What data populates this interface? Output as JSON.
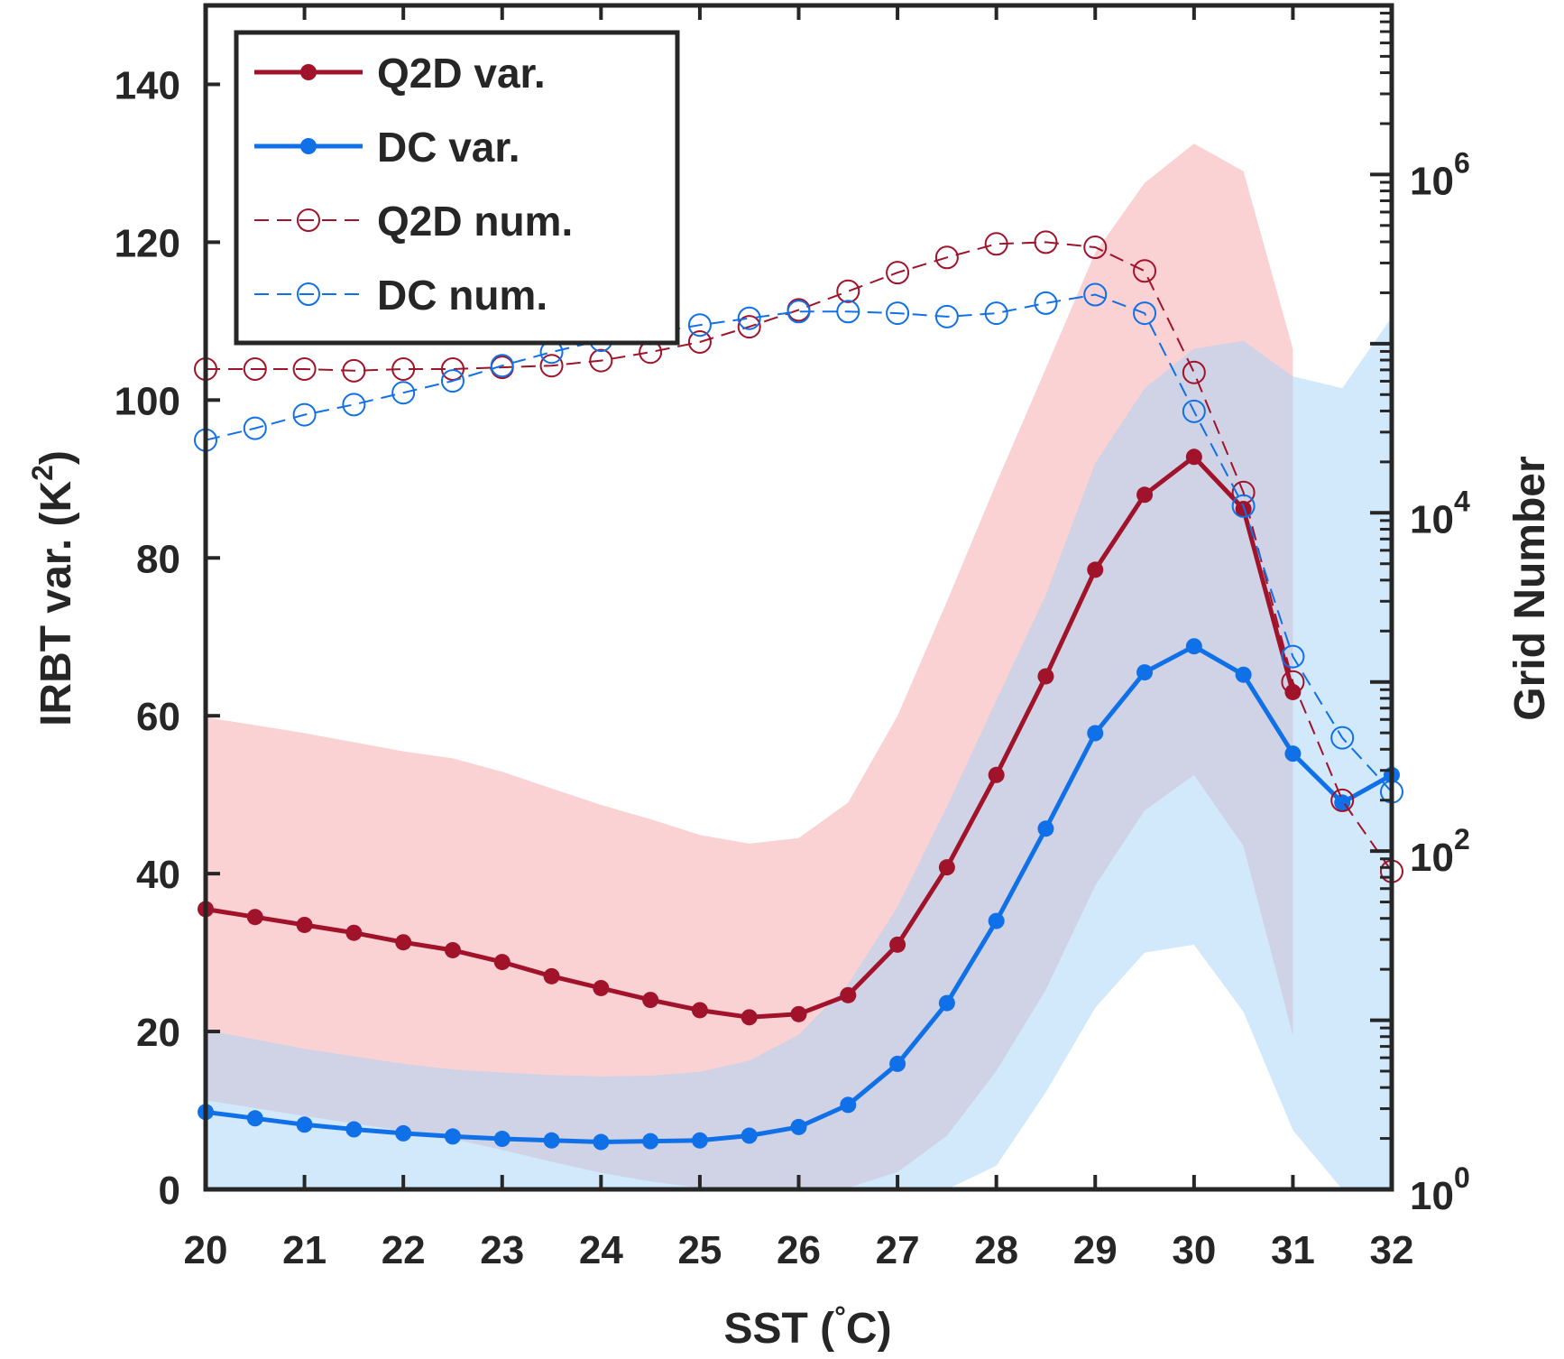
{
  "chart_data": {
    "type": "line",
    "xlabel": "SST (°C)",
    "xlabel_parts": {
      "pre": "SST (",
      "degree": "°",
      "post": "C)"
    },
    "ylabel_left": "IRBT var. (K²)",
    "ylabel_left_parts": {
      "pre": "IRBT var. (K",
      "sup": "2",
      "post": ")"
    },
    "ylabel_right": "Grid Number",
    "xlim": [
      20,
      32
    ],
    "ylim_left": [
      0,
      150
    ],
    "ylim_right_log10": [
      0,
      7
    ],
    "right_axis_scale": "log",
    "grid": false,
    "legend_position": "top-left",
    "x_ticks": [
      20,
      21,
      22,
      23,
      24,
      25,
      26,
      27,
      28,
      29,
      30,
      31,
      32
    ],
    "y_left_ticks": [
      0,
      20,
      40,
      60,
      80,
      100,
      120,
      140
    ],
    "y_right_ticks": [
      {
        "base": "10",
        "exp": "0",
        "log10": 0
      },
      {
        "base": "10",
        "exp": "2",
        "log10": 2
      },
      {
        "base": "10",
        "exp": "4",
        "log10": 4
      },
      {
        "base": "10",
        "exp": "6",
        "log10": 6
      }
    ],
    "series": [
      {
        "name": "Q2D var.",
        "axis": "left",
        "color": "#a0132a",
        "style": "solid",
        "marker": "filled",
        "x": [
          20,
          20.5,
          21,
          21.5,
          22,
          22.5,
          23,
          23.5,
          24,
          24.5,
          25,
          25.5,
          26,
          26.5,
          27,
          27.5,
          28,
          28.5,
          29,
          29.5,
          30,
          30.5,
          31
        ],
        "y": [
          35.5,
          34.5,
          33.5,
          32.5,
          31.3,
          30.3,
          28.8,
          27,
          25.5,
          24,
          22.7,
          21.8,
          22.2,
          24.6,
          31,
          40.8,
          52.5,
          65,
          78.5,
          88,
          92.8,
          86.2,
          63
        ]
      },
      {
        "name": "DC var.",
        "axis": "left",
        "color": "#1070e8",
        "style": "solid",
        "marker": "filled",
        "x": [
          20,
          20.5,
          21,
          21.5,
          22,
          22.5,
          23,
          23.5,
          24,
          24.5,
          25,
          25.5,
          26,
          26.5,
          27,
          27.5,
          28,
          28.5,
          29,
          29.5,
          30,
          30.5,
          31,
          31.5,
          32
        ],
        "y": [
          9.8,
          9,
          8.2,
          7.6,
          7.1,
          6.7,
          6.4,
          6.2,
          6,
          6.1,
          6.2,
          6.8,
          7.9,
          10.7,
          15.9,
          23.6,
          34,
          45.7,
          57.8,
          65.5,
          68.8,
          65.2,
          55.2,
          49,
          52.5
        ]
      },
      {
        "name": "Q2D num.",
        "axis": "right",
        "color": "#a0132a",
        "style": "dashed",
        "marker": "open",
        "x": [
          20,
          20.5,
          21,
          21.5,
          22,
          22.5,
          23,
          23.5,
          24,
          24.5,
          25,
          25.5,
          26,
          26.5,
          27,
          27.5,
          28,
          28.5,
          29,
          29.5,
          30,
          30.5,
          31,
          31.5,
          32
        ],
        "y_log10": [
          4.85,
          4.85,
          4.85,
          4.84,
          4.85,
          4.85,
          4.86,
          4.87,
          4.9,
          4.95,
          5.01,
          5.1,
          5.2,
          5.31,
          5.42,
          5.51,
          5.59,
          5.6,
          5.57,
          5.43,
          4.83,
          4.12,
          3.0,
          2.3,
          1.88
        ]
      },
      {
        "name": "DC num.",
        "axis": "right",
        "color": "#1070e8",
        "style": "dashed",
        "marker": "open",
        "x": [
          20,
          20.5,
          21,
          21.5,
          22,
          22.5,
          23,
          23.5,
          24,
          24.5,
          25,
          25.5,
          26,
          26.5,
          27,
          27.5,
          28,
          28.5,
          29,
          29.5,
          30,
          30.5,
          31,
          31.5,
          32
        ],
        "y_log10": [
          4.43,
          4.5,
          4.58,
          4.64,
          4.71,
          4.78,
          4.87,
          4.95,
          5.02,
          5.06,
          5.11,
          5.15,
          5.19,
          5.19,
          5.18,
          5.16,
          5.18,
          5.24,
          5.29,
          5.18,
          4.6,
          4.04,
          3.15,
          2.67,
          2.35
        ]
      }
    ],
    "bands": [
      {
        "series": "Q2D var.",
        "color": "#f9b7b8",
        "opacity": 0.62,
        "x": [
          20,
          21,
          22,
          22.5,
          23,
          23.5,
          24,
          24.5,
          25,
          25.5,
          26,
          26.5,
          27,
          27.5,
          28,
          28.5,
          29,
          29.5,
          30,
          30.5,
          31
        ],
        "upper": [
          59.8,
          57.8,
          55.5,
          54.6,
          52.9,
          50.8,
          48.7,
          46.9,
          44.9,
          43.8,
          44.5,
          49,
          60,
          74.5,
          89.5,
          104,
          118.7,
          127.5,
          132.5,
          129,
          106.5
        ],
        "lower": [
          11.3,
          9.3,
          7.4,
          6.4,
          5,
          3.5,
          2.1,
          1,
          0.2,
          -0.3,
          -0.3,
          0.2,
          2.2,
          6.8,
          15,
          25.3,
          38.5,
          48,
          52.5,
          43.5,
          19.5
        ]
      },
      {
        "series": "DC var.",
        "color": "#a6d2f8",
        "opacity": 0.5,
        "x": [
          20,
          21,
          22,
          22.5,
          23,
          23.5,
          24,
          24.5,
          25,
          25.5,
          26,
          26.5,
          27,
          27.5,
          28,
          28.5,
          29,
          29.5,
          30,
          30.5,
          31,
          31.5,
          32
        ],
        "upper": [
          20.2,
          17.8,
          15.9,
          15.2,
          14.8,
          14.5,
          14.3,
          14.4,
          14.9,
          16.3,
          19.6,
          26,
          35.8,
          48.5,
          62,
          75.3,
          92,
          101.5,
          106.5,
          107.5,
          103,
          101.5,
          110.5
        ],
        "lower": [
          0,
          0,
          0,
          0,
          0,
          0,
          0,
          0,
          0,
          0,
          0,
          0,
          0,
          0,
          3,
          12.3,
          23,
          30,
          31,
          22.5,
          7.5,
          0,
          0
        ]
      }
    ]
  }
}
